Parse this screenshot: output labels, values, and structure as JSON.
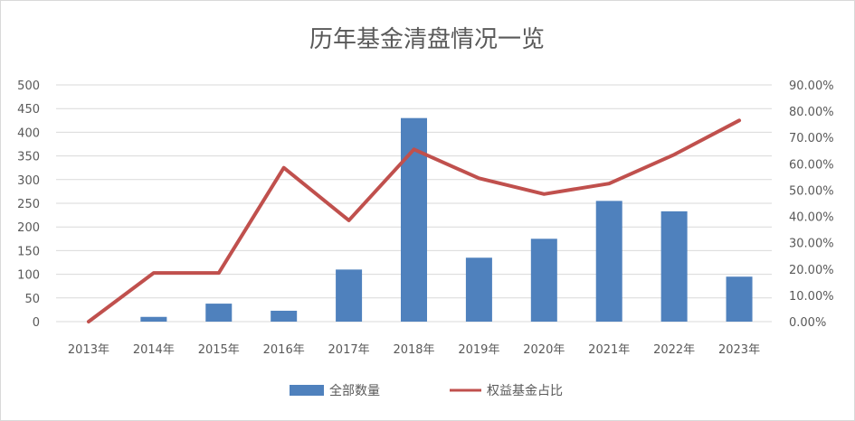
{
  "chart_data": {
    "type": "bar+line",
    "title": "历年基金清盘情况一览",
    "categories": [
      "2013年",
      "2014年",
      "2015年",
      "2016年",
      "2017年",
      "2018年",
      "2019年",
      "2020年",
      "2021年",
      "2022年",
      "2023年"
    ],
    "series": [
      {
        "name": "全部数量",
        "type": "bar",
        "axis": "left",
        "color": "#4f81bd",
        "values": [
          0,
          10,
          38,
          23,
          110,
          430,
          135,
          175,
          255,
          233,
          95
        ]
      },
      {
        "name": "权益基金占比",
        "type": "line",
        "axis": "right",
        "color": "#c0504d",
        "values": [
          0.0,
          18.5,
          18.5,
          58.5,
          38.5,
          65.5,
          54.5,
          48.5,
          52.5,
          63.5,
          76.5
        ]
      }
    ],
    "y_left": {
      "min": 0,
      "max": 500,
      "step": 50,
      "ticks": [
        "0",
        "50",
        "100",
        "150",
        "200",
        "250",
        "300",
        "350",
        "400",
        "450",
        "500"
      ]
    },
    "y_right": {
      "min": 0,
      "max": 90,
      "step": 10,
      "ticks": [
        "0.00%",
        "10.00%",
        "20.00%",
        "30.00%",
        "40.00%",
        "50.00%",
        "60.00%",
        "70.00%",
        "80.00%",
        "90.00%"
      ]
    },
    "grid": true,
    "legend_position": "bottom"
  }
}
